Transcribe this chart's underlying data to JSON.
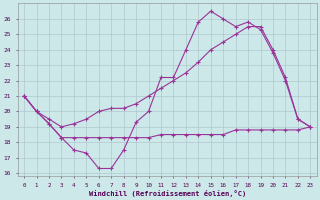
{
  "xlabel": "Windchill (Refroidissement éolien,°C)",
  "background_color": "#cce8e8",
  "grid_color": "#b0c8d0",
  "line_color1": "#993399",
  "line_color2": "#993399",
  "line_color3": "#993399",
  "xlim": [
    -0.5,
    23.5
  ],
  "ylim": [
    15.8,
    27.0
  ],
  "yticks": [
    16,
    17,
    18,
    19,
    20,
    21,
    22,
    23,
    24,
    25,
    26
  ],
  "xticks": [
    0,
    1,
    2,
    3,
    4,
    5,
    6,
    7,
    8,
    9,
    10,
    11,
    12,
    13,
    14,
    15,
    16,
    17,
    18,
    19,
    20,
    21,
    22,
    23
  ],
  "s1_x": [
    0,
    1,
    2,
    3,
    4,
    5,
    6,
    7,
    8,
    9,
    10,
    11,
    12,
    13,
    14,
    15,
    16,
    17,
    18,
    19,
    20,
    21,
    22,
    23
  ],
  "s1_y": [
    21.0,
    20.0,
    19.2,
    18.3,
    17.5,
    17.3,
    16.3,
    16.3,
    17.5,
    19.3,
    20.0,
    22.2,
    22.2,
    24.0,
    25.8,
    26.5,
    26.0,
    25.5,
    25.8,
    25.3,
    23.8,
    22.0,
    19.5,
    19.0
  ],
  "s2_x": [
    0,
    1,
    2,
    3,
    4,
    5,
    6,
    7,
    8,
    9,
    10,
    11,
    12,
    13,
    14,
    15,
    16,
    17,
    18,
    19,
    20,
    21,
    22,
    23
  ],
  "s2_y": [
    21.0,
    20.0,
    19.5,
    19.0,
    19.2,
    19.5,
    20.0,
    20.2,
    20.2,
    20.5,
    21.0,
    21.5,
    22.0,
    22.5,
    23.2,
    24.0,
    24.5,
    25.0,
    25.5,
    25.5,
    24.0,
    22.2,
    19.5,
    19.0
  ],
  "s3_x": [
    0,
    1,
    2,
    3,
    4,
    5,
    6,
    7,
    8,
    9,
    10,
    11,
    12,
    13,
    14,
    15,
    16,
    17,
    18,
    19,
    20,
    21,
    22,
    23
  ],
  "s3_y": [
    21.0,
    20.0,
    19.2,
    18.3,
    18.3,
    18.3,
    18.3,
    18.3,
    18.3,
    18.3,
    18.3,
    18.5,
    18.5,
    18.5,
    18.5,
    18.5,
    18.5,
    18.8,
    18.8,
    18.8,
    18.8,
    18.8,
    18.8,
    19.0
  ]
}
